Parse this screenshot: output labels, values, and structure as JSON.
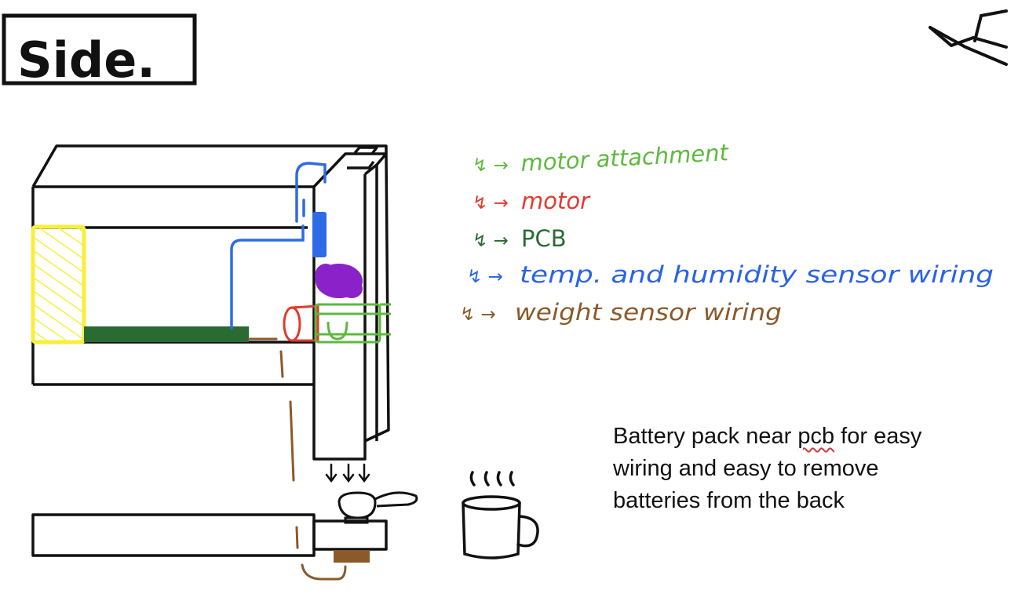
{
  "title": "Side.",
  "legend": [
    {
      "label": "motor attachment",
      "color": "#5db93f"
    },
    {
      "label": "motor",
      "color": "#e23a2e"
    },
    {
      "label": "PCB",
      "color": "#2a6b34"
    },
    {
      "label": "temp. and humidity sensor wiring",
      "color": "#2a63e6"
    },
    {
      "label": "weight sensor wiring",
      "color": "#8a5a2b"
    }
  ],
  "note": {
    "line1_before": "Battery pack near ",
    "line1_word": "pcb",
    "line1_after": " for easy",
    "line2": "wiring and easy to remove",
    "line3": "batteries from the back"
  },
  "colors": {
    "ink": "#111111",
    "battery": "#f7ef3a",
    "sensor_block": "#2f6be6",
    "humidity_sensor": "#8b22c9",
    "weight_pad": "#8a5a2b"
  }
}
